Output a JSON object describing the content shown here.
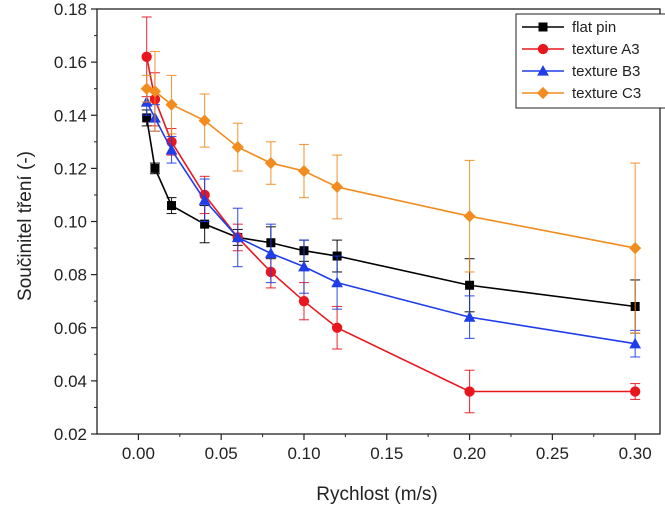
{
  "chart_data": {
    "type": "line",
    "title": "",
    "xlabel": "Rychlost (m/s)",
    "ylabel": "Součinitel tření (-)",
    "xlim": [
      -0.025,
      0.315
    ],
    "ylim": [
      0.02,
      0.18
    ],
    "xticks": [
      0.0,
      0.05,
      0.1,
      0.15,
      0.2,
      0.25,
      0.3
    ],
    "xtick_labels": [
      "0.00",
      "0.05",
      "0.10",
      "0.15",
      "0.20",
      "0.25",
      "0.30"
    ],
    "yticks": [
      0.02,
      0.04,
      0.06,
      0.08,
      0.1,
      0.12,
      0.14,
      0.16,
      0.18
    ],
    "ytick_labels": [
      "0.02",
      "0.04",
      "0.06",
      "0.08",
      "0.10",
      "0.12",
      "0.14",
      "0.16",
      "0.18"
    ],
    "grid": false,
    "legend_position": "top-right",
    "series": [
      {
        "name": "flat pin",
        "color": "#000000",
        "marker": "square",
        "x": [
          0.005,
          0.01,
          0.02,
          0.04,
          0.06,
          0.08,
          0.1,
          0.12,
          0.2,
          0.3
        ],
        "y": [
          0.139,
          0.12,
          0.106,
          0.099,
          0.094,
          0.092,
          0.089,
          0.087,
          0.076,
          0.068
        ],
        "err": [
          0.003,
          0.002,
          0.003,
          0.007,
          0.003,
          0.006,
          0.004,
          0.006,
          0.01,
          0.01
        ]
      },
      {
        "name": "texture A3",
        "color": "#e8161d",
        "marker": "circle",
        "x": [
          0.005,
          0.01,
          0.02,
          0.04,
          0.06,
          0.08,
          0.1,
          0.12,
          0.2,
          0.3
        ],
        "y": [
          0.162,
          0.146,
          0.13,
          0.11,
          0.094,
          0.081,
          0.07,
          0.06,
          0.036,
          0.036
        ],
        "err": [
          0.015,
          0.01,
          0.005,
          0.007,
          0.005,
          0.006,
          0.007,
          0.008,
          0.008,
          0.003
        ]
      },
      {
        "name": "texture B3",
        "color": "#1f3de8",
        "marker": "triangle",
        "x": [
          0.005,
          0.01,
          0.02,
          0.04,
          0.06,
          0.08,
          0.1,
          0.12,
          0.2,
          0.3
        ],
        "y": [
          0.145,
          0.139,
          0.127,
          0.108,
          0.094,
          0.088,
          0.083,
          0.077,
          0.064,
          0.054
        ],
        "err": [
          0.005,
          0.005,
          0.005,
          0.008,
          0.011,
          0.011,
          0.01,
          0.01,
          0.008,
          0.005
        ]
      },
      {
        "name": "texture C3",
        "color": "#f28c1e",
        "marker": "diamond",
        "x": [
          0.005,
          0.01,
          0.02,
          0.04,
          0.06,
          0.08,
          0.1,
          0.12,
          0.2,
          0.3
        ],
        "y": [
          0.15,
          0.149,
          0.144,
          0.138,
          0.128,
          0.122,
          0.119,
          0.113,
          0.102,
          0.09
        ],
        "err": [
          0.005,
          0.015,
          0.011,
          0.01,
          0.009,
          0.008,
          0.01,
          0.012,
          0.021,
          0.032
        ]
      }
    ]
  }
}
